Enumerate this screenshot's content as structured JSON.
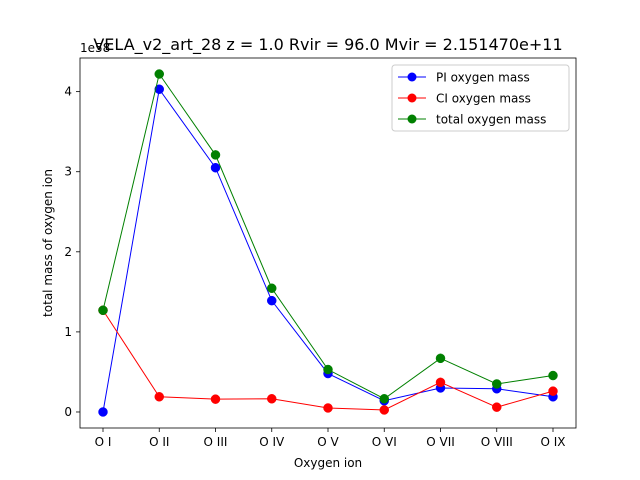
{
  "chart_data": {
    "type": "line",
    "title": "VELA_v2_art_28 z = 1.0 Rvir = 96.0 Mvir = 2.151470e+11",
    "xlabel": "Oxygen ion",
    "ylabel": "total mass of oxygen ion",
    "offset_label": "1e58",
    "categories": [
      "O I",
      "O II",
      "O III",
      "O IV",
      "O V",
      "O VI",
      "O VII",
      "O VIII",
      "O IX"
    ],
    "ylim": [
      -0.2,
      4.42
    ],
    "yticks": [
      "0",
      "1",
      "2",
      "3",
      "4"
    ],
    "grid": false,
    "legend_position": "upper right",
    "series": [
      {
        "name": "PI oxygen mass",
        "color": "#0000ff",
        "values": [
          0.0,
          4.03,
          3.05,
          1.39,
          0.48,
          0.14,
          0.3,
          0.29,
          0.19
        ]
      },
      {
        "name": "CI oxygen mass",
        "color": "#ff0000",
        "values": [
          1.27,
          0.19,
          0.16,
          0.165,
          0.05,
          0.025,
          0.37,
          0.06,
          0.26
        ]
      },
      {
        "name": "total oxygen mass",
        "color": "#008000",
        "values": [
          1.27,
          4.22,
          3.21,
          1.545,
          0.53,
          0.165,
          0.67,
          0.35,
          0.455
        ]
      }
    ]
  }
}
